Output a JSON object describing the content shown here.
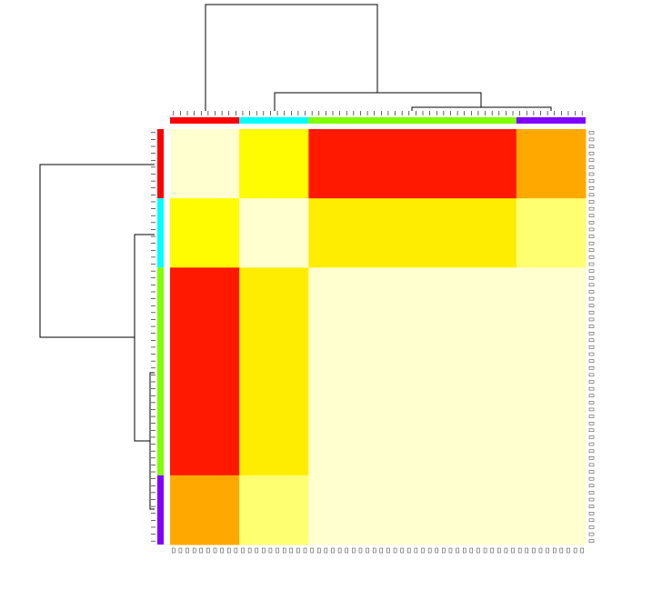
{
  "chart_data": {
    "type": "heatmap",
    "group_sizes": [
      10,
      10,
      30,
      10
    ],
    "group_colors": [
      "#ff0000",
      "#00ffff",
      "#80ff00",
      "#8000ff"
    ],
    "matrix": [
      [
        1,
        0.65,
        0.05,
        0.35
      ],
      [
        0.65,
        1,
        0.6,
        0.85
      ],
      [
        0.05,
        0.6,
        1,
        1
      ],
      [
        0.35,
        0.85,
        1,
        1
      ]
    ],
    "colorscale": [
      "#ff0000",
      "#ffa500",
      "#ffff00",
      "#ffffd0"
    ],
    "zlim": [
      0,
      1
    ]
  }
}
